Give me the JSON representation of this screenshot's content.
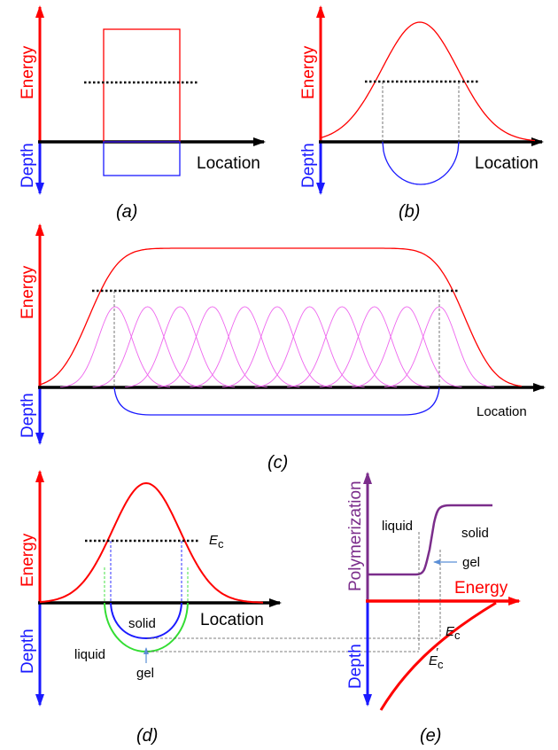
{
  "colors": {
    "energy": "#ff0000",
    "depth": "#1a1aff",
    "axis": "#000000",
    "gel": "#33dd33",
    "overlap": "#ee66ee",
    "polymer": "#7b2d8b",
    "guide": "#555555",
    "arrow": "#5b8fd6"
  },
  "labels": {
    "energy": "Energy",
    "depth": "Depth",
    "location": "Location",
    "polymerization": "Polymerization",
    "liquid": "liquid",
    "solid": "solid",
    "gel": "gel",
    "ec_main": "E",
    "ec_sub": "c",
    "ec_prime_mark": "′"
  },
  "panels": {
    "a": {
      "caption": "(a)"
    },
    "b": {
      "caption": "(b)"
    },
    "c": {
      "caption": "(c)"
    },
    "d": {
      "caption": "(d)"
    },
    "e": {
      "caption": "(e)"
    }
  }
}
